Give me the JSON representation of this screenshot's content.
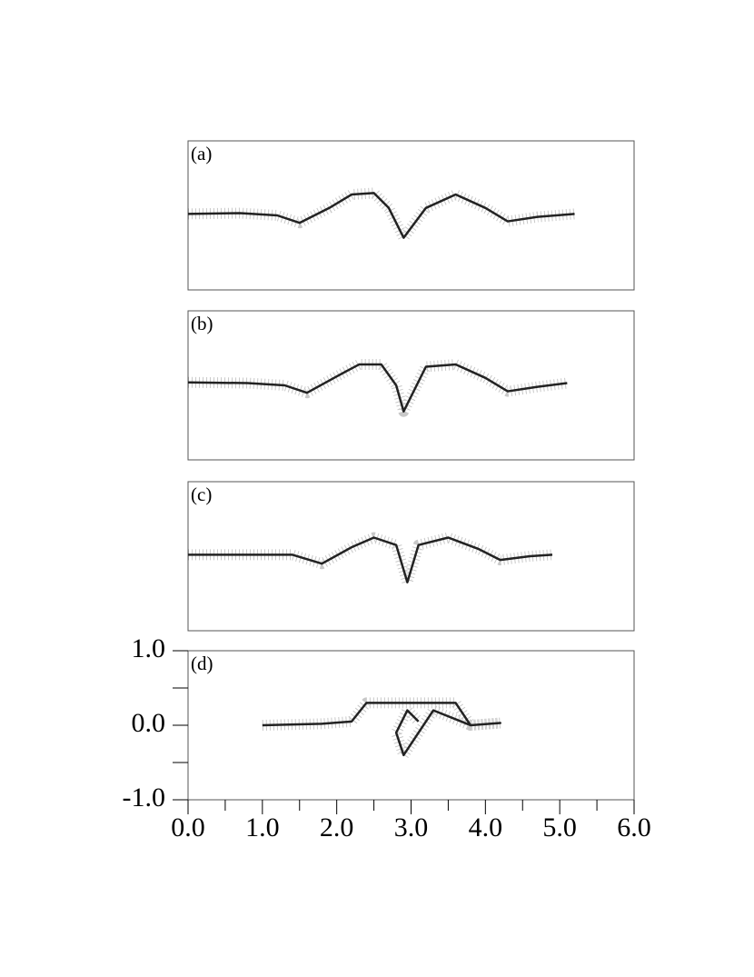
{
  "chart_data": [
    {
      "type": "line",
      "label": "(a)",
      "color": "#222222",
      "x": [
        0.0,
        0.7,
        1.2,
        1.5,
        1.9,
        2.2,
        2.5,
        2.7,
        2.9,
        3.2,
        3.6,
        4.0,
        4.3,
        4.7,
        5.2
      ],
      "values": [
        0.02,
        0.03,
        0.0,
        -0.1,
        0.1,
        0.28,
        0.3,
        0.1,
        -0.3,
        0.1,
        0.28,
        0.1,
        -0.08,
        -0.02,
        0.02
      ],
      "xlim": [
        0.0,
        6.0
      ],
      "ylim": [
        -1.0,
        1.0
      ]
    },
    {
      "type": "line",
      "label": "(b)",
      "color": "#222222",
      "x": [
        0.0,
        0.8,
        1.3,
        1.6,
        2.0,
        2.3,
        2.6,
        2.8,
        2.9,
        3.2,
        3.6,
        4.0,
        4.3,
        4.7,
        5.1
      ],
      "values": [
        0.04,
        0.03,
        0.0,
        -0.1,
        0.12,
        0.28,
        0.28,
        0.0,
        -0.35,
        0.25,
        0.28,
        0.1,
        -0.08,
        -0.02,
        0.03
      ],
      "xlim": [
        0.0,
        6.0
      ],
      "ylim": [
        -1.0,
        1.0
      ]
    },
    {
      "type": "line",
      "label": "(c)",
      "color": "#222222",
      "x": [
        0.0,
        0.9,
        1.4,
        1.8,
        2.2,
        2.5,
        2.8,
        2.95,
        3.1,
        3.5,
        3.9,
        4.2,
        4.6,
        4.9
      ],
      "values": [
        0.02,
        0.02,
        0.02,
        -0.1,
        0.12,
        0.25,
        0.15,
        -0.35,
        0.15,
        0.25,
        0.1,
        -0.05,
        0.0,
        0.02
      ],
      "xlim": [
        0.0,
        6.0
      ],
      "ylim": [
        -1.0,
        1.0
      ]
    },
    {
      "type": "line",
      "label": "(d)",
      "color": "#222222",
      "x": [
        1.0,
        1.8,
        2.2,
        2.4,
        2.8,
        3.2,
        3.6,
        3.8,
        4.2,
        3.8,
        3.3,
        3.1,
        2.9,
        2.8,
        2.95,
        3.1
      ],
      "values": [
        0.0,
        0.02,
        0.05,
        0.3,
        0.3,
        0.3,
        0.3,
        0.0,
        0.03,
        0.0,
        0.2,
        -0.1,
        -0.4,
        -0.1,
        0.2,
        0.05
      ],
      "xlim": [
        0.0,
        6.0
      ],
      "ylim": [
        -1.0,
        1.0
      ],
      "xticks": [
        {
          "value": 0,
          "label": "0.0"
        },
        {
          "value": 1,
          "label": "1.0"
        },
        {
          "value": 2,
          "label": "2.0"
        },
        {
          "value": 3,
          "label": "3.0"
        },
        {
          "value": 4,
          "label": "4.0"
        },
        {
          "value": 5,
          "label": "5.0"
        },
        {
          "value": 6,
          "label": "6.0"
        }
      ],
      "xminorticks": [
        0.5,
        1.5,
        2.5,
        3.5,
        4.5,
        5.5
      ],
      "yticks": [
        {
          "value": -1,
          "label": "-1.0"
        },
        {
          "value": 0,
          "label": "0.0"
        },
        {
          "value": 1,
          "label": "1.0"
        }
      ],
      "yminorticks": [
        -0.5,
        0.5
      ]
    }
  ]
}
